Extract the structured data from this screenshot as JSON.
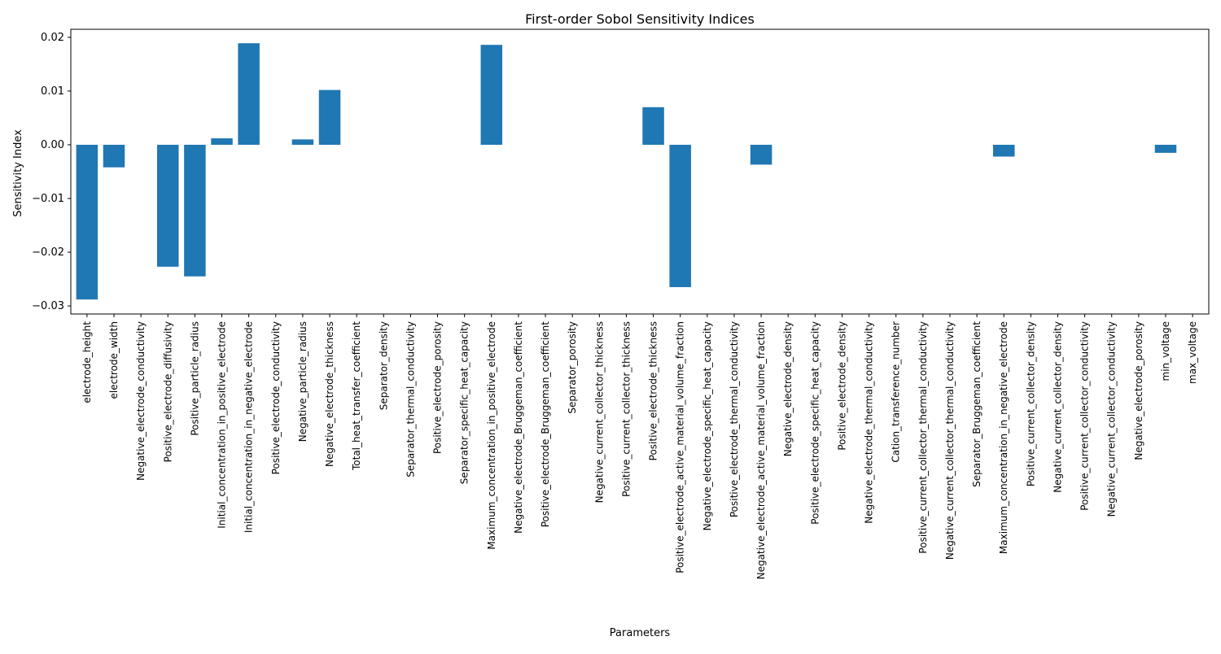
{
  "chart_data": {
    "type": "bar",
    "title": "First-order Sobol Sensitivity Indices",
    "xlabel": "Parameters",
    "ylabel": "Sensitivity Index",
    "ylim": [
      -0.0315,
      0.0215
    ],
    "yticks": [
      0.02,
      0.01,
      0.0,
      -0.01,
      -0.02,
      -0.03
    ],
    "ytick_labels": [
      "0.02",
      "0.01",
      "0.00",
      "−0.01",
      "−0.02",
      "−0.03"
    ],
    "grid": false,
    "bar_color": "#1f77b4",
    "categories": [
      "electrode_height",
      "electrode_width",
      "Negative_electrode_conductivity",
      "Positive_electrode_diffusivity",
      "Positive_particle_radius",
      "Initial_concentration_in_positive_electrode",
      "Initial_concentration_in_negative_electrode",
      "Positive_electrode_conductivity",
      "Negative_particle_radius",
      "Negative_electrode_thickness",
      "Total_heat_transfer_coefficient",
      "Separator_density",
      "Separator_thermal_conductivity",
      "Positive_electrode_porosity",
      "Separator_specific_heat_capacity",
      "Maximum_concentration_in_positive_electrode",
      "Negative_electrode_Bruggeman_coefficient",
      "Positive_electrode_Bruggeman_coefficient",
      "Separator_porosity",
      "Negative_current_collector_thickness",
      "Positive_current_collector_thickness",
      "Positive_electrode_thickness",
      "Positive_electrode_active_material_volume_fraction",
      "Negative_electrode_specific_heat_capacity",
      "Positive_electrode_thermal_conductivity",
      "Negative_electrode_active_material_volume_fraction",
      "Negative_electrode_density",
      "Positive_electrode_specific_heat_capacity",
      "Positive_electrode_density",
      "Negative_electrode_thermal_conductivity",
      "Cation_transference_number",
      "Positive_current_collector_thermal_conductivity",
      "Negative_current_collector_thermal_conductivity",
      "Separator_Bruggeman_coefficient",
      "Maximum_concentration_in_negative_electrode",
      "Positive_current_collector_density",
      "Negative_current_collector_density",
      "Positive_current_collector_conductivity",
      "Negative_current_collector_conductivity",
      "Negative_electrode_porosity",
      "min_voltage",
      "max_voltage"
    ],
    "values": [
      -0.0288,
      -0.0042,
      0.0,
      -0.0227,
      -0.0245,
      0.0012,
      0.0189,
      0.0,
      0.001,
      0.0102,
      0.0,
      0.0,
      0.0,
      0.0,
      0.0,
      0.0186,
      0.0,
      0.0,
      0.0,
      0.0,
      0.0,
      0.007,
      -0.0265,
      0.0,
      0.0,
      -0.0037,
      0.0,
      0.0,
      0.0,
      0.0,
      0.0,
      0.0,
      0.0,
      0.0,
      -0.0022,
      0.0,
      0.0,
      0.0,
      0.0,
      0.0,
      -0.0015,
      0.0
    ]
  }
}
